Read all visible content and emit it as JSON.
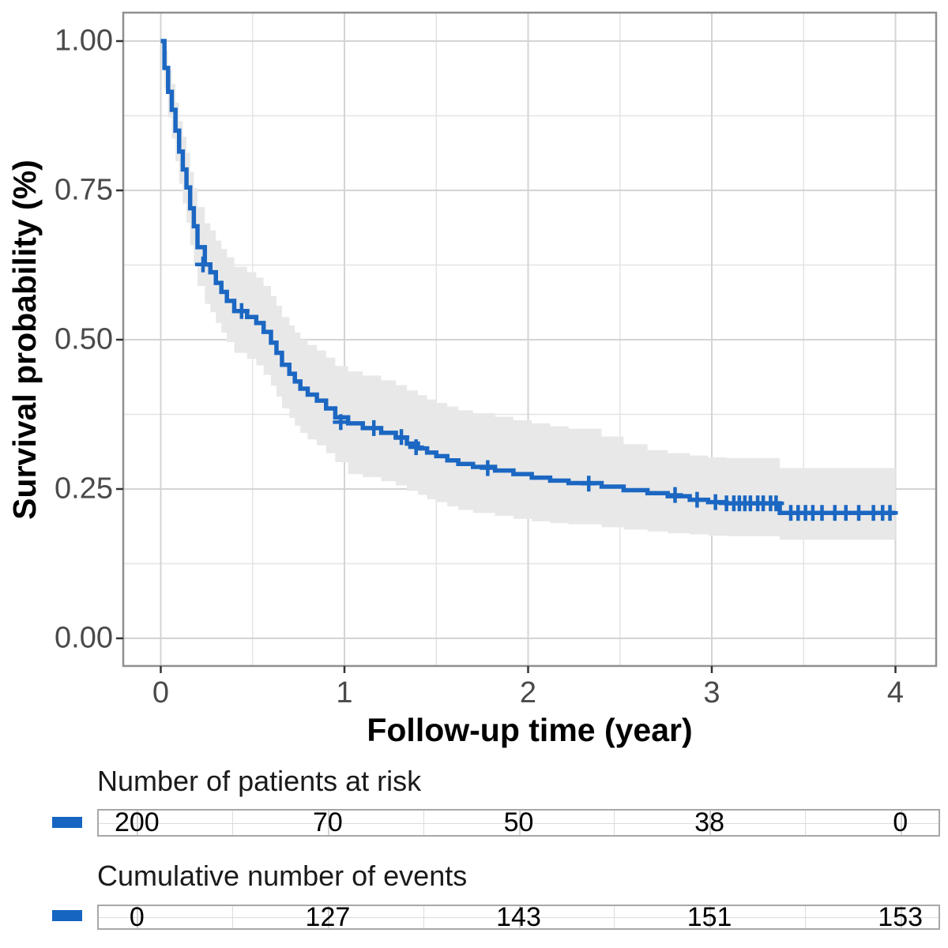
{
  "chart": {
    "y_axis_title": "Survival probability (%)",
    "x_axis_title": "Follow-up time (year)"
  },
  "chart_data": {
    "type": "line",
    "subtype": "kaplan-meier-step-with-confidence-band",
    "title": "",
    "xlabel": "Follow-up time (year)",
    "ylabel": "Survival probability (%)",
    "xlim": [
      0,
      4
    ],
    "ylim": [
      0,
      1
    ],
    "x_ticks": {
      "values": [
        0,
        1,
        2,
        3,
        4
      ],
      "labels": [
        "0",
        "1",
        "2",
        "3",
        "4"
      ]
    },
    "y_ticks": {
      "values": [
        0,
        0.25,
        0.5,
        0.75,
        1
      ],
      "labels": [
        "0.00",
        "0.25",
        "0.50",
        "0.75",
        "1.00"
      ]
    },
    "x_minor_ticks": [
      0.5,
      1.5,
      2.5,
      3.5
    ],
    "y_minor_ticks": [
      0.125,
      0.375,
      0.625,
      0.875
    ],
    "grid": "on",
    "legend": "none",
    "end_time": 4.0,
    "series": [
      {
        "time": [
          0,
          0.02,
          0.04,
          0.06,
          0.08,
          0.1,
          0.12,
          0.14,
          0.16,
          0.18,
          0.2,
          0.24,
          0.27,
          0.3,
          0.33,
          0.36,
          0.4,
          0.47,
          0.52,
          0.56,
          0.6,
          0.63,
          0.66,
          0.7,
          0.73,
          0.76,
          0.8,
          0.85,
          0.9,
          0.95,
          1.02,
          1.1,
          1.2,
          1.28,
          1.34,
          1.4,
          1.45,
          1.5,
          1.56,
          1.62,
          1.7,
          1.82,
          1.92,
          2.02,
          2.12,
          2.22,
          2.4,
          2.52,
          2.65,
          2.76,
          2.88,
          2.98,
          3.08,
          3.37
        ],
        "survival": [
          1.0,
          0.955,
          0.915,
          0.885,
          0.85,
          0.815,
          0.785,
          0.755,
          0.72,
          0.69,
          0.655,
          0.626,
          0.613,
          0.595,
          0.58,
          0.565,
          0.548,
          0.538,
          0.528,
          0.513,
          0.495,
          0.478,
          0.458,
          0.443,
          0.43,
          0.418,
          0.408,
          0.398,
          0.385,
          0.37,
          0.36,
          0.352,
          0.344,
          0.336,
          0.326,
          0.318,
          0.311,
          0.305,
          0.298,
          0.292,
          0.287,
          0.281,
          0.275,
          0.269,
          0.264,
          0.26,
          0.254,
          0.248,
          0.243,
          0.238,
          0.232,
          0.228,
          0.226,
          0.21
        ],
        "upper_ci": [
          1.0,
          0.984,
          0.952,
          0.928,
          0.897,
          0.866,
          0.84,
          0.813,
          0.781,
          0.754,
          0.722,
          0.695,
          0.683,
          0.666,
          0.652,
          0.638,
          0.622,
          0.613,
          0.604,
          0.59,
          0.573,
          0.557,
          0.538,
          0.524,
          0.512,
          0.5,
          0.491,
          0.482,
          0.47,
          0.456,
          0.447,
          0.44,
          0.432,
          0.424,
          0.415,
          0.407,
          0.4,
          0.394,
          0.388,
          0.382,
          0.377,
          0.371,
          0.365,
          0.36,
          0.355,
          0.351,
          0.338,
          0.325,
          0.315,
          0.31,
          0.306,
          0.303,
          0.302,
          0.285
        ],
        "lower_ci": [
          1.0,
          0.92,
          0.872,
          0.837,
          0.799,
          0.761,
          0.728,
          0.696,
          0.658,
          0.625,
          0.59,
          0.56,
          0.546,
          0.528,
          0.512,
          0.496,
          0.478,
          0.468,
          0.457,
          0.441,
          0.423,
          0.405,
          0.385,
          0.369,
          0.356,
          0.344,
          0.333,
          0.323,
          0.31,
          0.295,
          0.275,
          0.27,
          0.263,
          0.256,
          0.247,
          0.24,
          0.233,
          0.228,
          0.221,
          0.215,
          0.21,
          0.205,
          0.2,
          0.196,
          0.193,
          0.191,
          0.186,
          0.182,
          0.179,
          0.176,
          0.174,
          0.172,
          0.171,
          0.165
        ]
      }
    ],
    "censor_marks": {
      "time": [
        0.23,
        0.44,
        0.98,
        1.16,
        1.31,
        1.39,
        1.78,
        2.33,
        2.8,
        2.92,
        3.02,
        3.08,
        3.12,
        3.15,
        3.18,
        3.21,
        3.25,
        3.28,
        3.32,
        3.35,
        3.43,
        3.47,
        3.51,
        3.55,
        3.6,
        3.67,
        3.73,
        3.8,
        3.88,
        3.93,
        3.97
      ],
      "survival": [
        0.626,
        0.548,
        0.362,
        0.352,
        0.337,
        0.32,
        0.285,
        0.259,
        0.24,
        0.232,
        0.228,
        0.226,
        0.226,
        0.226,
        0.226,
        0.226,
        0.226,
        0.226,
        0.226,
        0.226,
        0.21,
        0.21,
        0.21,
        0.21,
        0.21,
        0.21,
        0.21,
        0.21,
        0.21,
        0.21,
        0.21
      ]
    },
    "colors": {
      "line": "#1b67c2",
      "censor": "#1b67c2",
      "confidence_band": "#e8e8e8",
      "grid_major": "#d4d4d4",
      "grid_minor": "#e4e4e4",
      "panel_border": "#8f8f8f",
      "tick_mark": "#333333",
      "tick_label": "#4a4a4a"
    }
  },
  "risk_table": {
    "title": "Number of patients at risk",
    "marker_color": "#1665c1",
    "times": [
      0,
      1,
      2,
      3,
      4
    ],
    "values": [
      "200",
      "70",
      "50",
      "38",
      "0"
    ]
  },
  "events_table": {
    "title": "Cumulative number of events",
    "marker_color": "#1665c1",
    "times": [
      0,
      1,
      2,
      3,
      4
    ],
    "values": [
      "0",
      "127",
      "143",
      "151",
      "153"
    ]
  }
}
